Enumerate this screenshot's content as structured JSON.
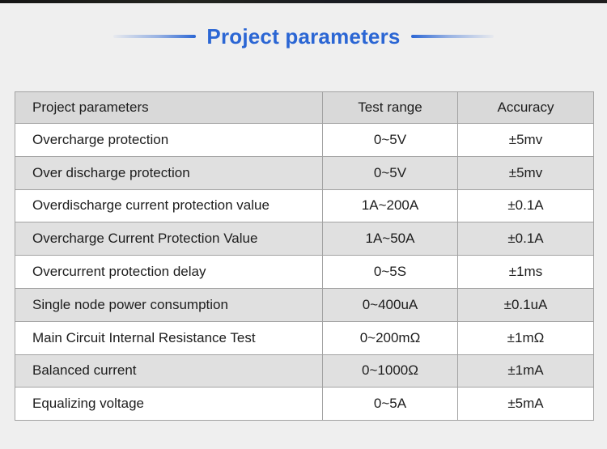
{
  "page": {
    "background_color": "#efefef",
    "top_strip_color": "#1a1a1a"
  },
  "header": {
    "title": "Project parameters",
    "accent_color": "#2b66d4"
  },
  "table": {
    "columns": [
      "Project parameters",
      "Test range",
      "Accuracy"
    ],
    "header_background": "#d9d9d9",
    "alt_row_background": "#e0e0e0",
    "border_color": "#a2a2a2",
    "rows": [
      {
        "name": "Overcharge protection",
        "range": "0~5V",
        "accuracy": "±5mv"
      },
      {
        "name": "Over discharge protection",
        "range": "0~5V",
        "accuracy": "±5mv"
      },
      {
        "name": "Overdischarge current protection value",
        "range": "1A~200A",
        "accuracy": "±0.1A"
      },
      {
        "name": "Overcharge Current Protection Value",
        "range": "1A~50A",
        "accuracy": "±0.1A"
      },
      {
        "name": "Overcurrent protection delay",
        "range": "0~5S",
        "accuracy": "±1ms"
      },
      {
        "name": "Single node power consumption",
        "range": "0~400uA",
        "accuracy": "±0.1uA"
      },
      {
        "name": "Main Circuit Internal Resistance Test",
        "range": "0~200mΩ",
        "accuracy": "±1mΩ"
      },
      {
        "name": "Balanced current",
        "range": "0~1000Ω",
        "accuracy": "±1mA"
      },
      {
        "name": "Equalizing voltage",
        "range": "0~5A",
        "accuracy": "±5mA"
      }
    ]
  }
}
